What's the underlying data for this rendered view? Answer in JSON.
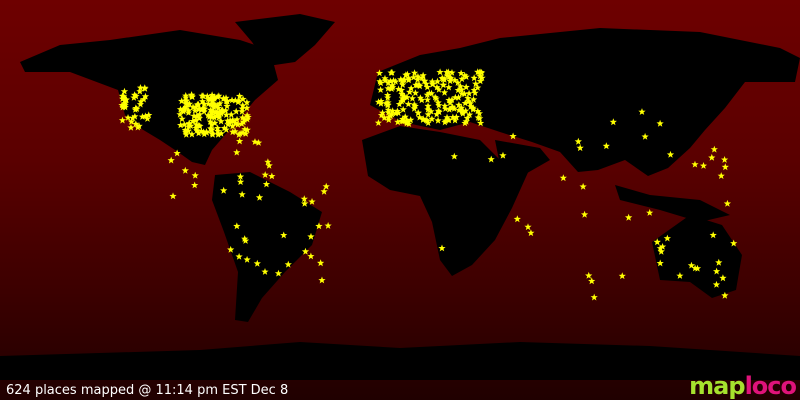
{
  "map": {
    "background_top": "#6e0000",
    "land_color": "#000000",
    "marker_color": "#ffff00",
    "marker_icon": "star-icon",
    "places_count": 624
  },
  "footer": {
    "caption": "624 places mapped @ 11:14 pm EST Dec 8"
  },
  "logo": {
    "text_part1": "map",
    "text_part2": "loco"
  }
}
